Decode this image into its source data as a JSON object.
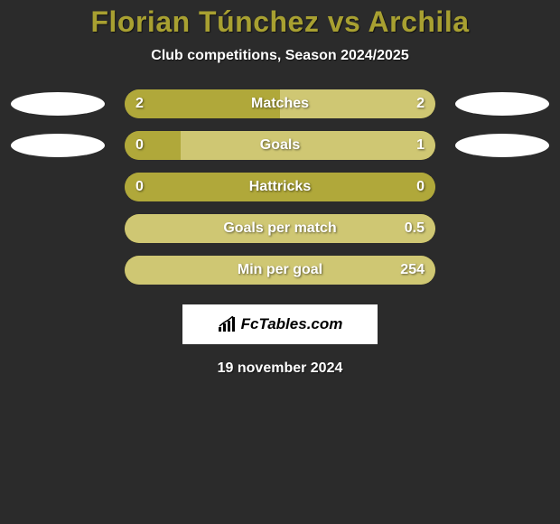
{
  "title": "Florian Túnchez vs Archila",
  "subtitle": "Club competitions, Season 2024/2025",
  "colors": {
    "background": "#2b2b2b",
    "title": "#a8a031",
    "text": "#ffffff",
    "bar_base": "#b0a83a",
    "bar_light": "#cfc773",
    "ellipse": "#ffffff"
  },
  "rows": [
    {
      "label": "Matches",
      "left_value": "2",
      "right_value": "2",
      "left_pct": 50,
      "right_pct": 50,
      "left_color": "#b0a83a",
      "right_color": "#cfc773",
      "left_ellipse": true,
      "right_ellipse": true
    },
    {
      "label": "Goals",
      "left_value": "0",
      "right_value": "1",
      "left_pct": 18,
      "right_pct": 82,
      "left_color": "#b0a83a",
      "right_color": "#cfc773",
      "left_ellipse": true,
      "right_ellipse": true
    },
    {
      "label": "Hattricks",
      "left_value": "0",
      "right_value": "0",
      "left_pct": 100,
      "right_pct": 0,
      "left_color": "#b0a83a",
      "right_color": "#cfc773",
      "left_ellipse": false,
      "right_ellipse": false
    },
    {
      "label": "Goals per match",
      "left_value": "",
      "right_value": "0.5",
      "left_pct": 0,
      "right_pct": 100,
      "left_color": "#b0a83a",
      "right_color": "#cfc773",
      "left_ellipse": false,
      "right_ellipse": false
    },
    {
      "label": "Min per goal",
      "left_value": "",
      "right_value": "254",
      "left_pct": 0,
      "right_pct": 100,
      "left_color": "#b0a83a",
      "right_color": "#cfc773",
      "left_ellipse": false,
      "right_ellipse": false
    }
  ],
  "logo_text": "FcTables.com",
  "date_text": "19 november 2024"
}
